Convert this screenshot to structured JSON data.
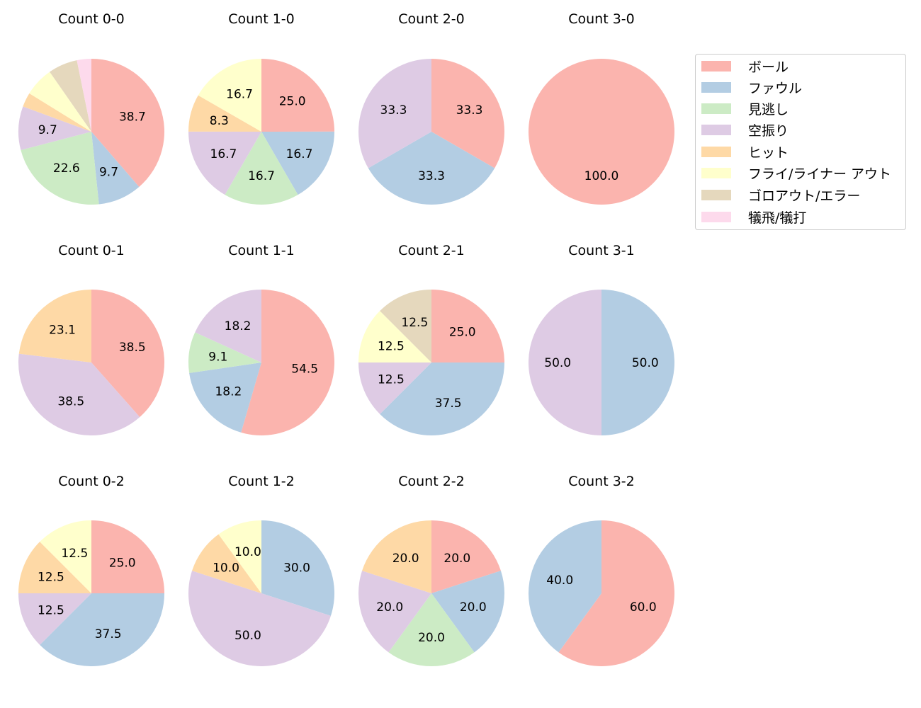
{
  "legend": {
    "items": [
      {
        "label": "ボール",
        "color": "#fbb4ae"
      },
      {
        "label": "ファウル",
        "color": "#b3cde3"
      },
      {
        "label": "見逃し",
        "color": "#ccebc5"
      },
      {
        "label": "空振り",
        "color": "#decbe4"
      },
      {
        "label": "ヒット",
        "color": "#fed9a6"
      },
      {
        "label": "フライ/ライナー アウト",
        "color": "#ffffcc"
      },
      {
        "label": "ゴロアウト/エラー",
        "color": "#e5d8bd"
      },
      {
        "label": "犠飛/犠打",
        "color": "#fddaec"
      }
    ]
  },
  "chart_data": {
    "type": "pie",
    "layout": {
      "rows": 3,
      "cols": 4,
      "startangle": 90,
      "direction": "clockwise",
      "legend_position": "upper right"
    },
    "categories": [
      "ボール",
      "ファウル",
      "見逃し",
      "空振り",
      "ヒット",
      "フライ/ライナー アウト",
      "ゴロアウト/エラー",
      "犠飛/犠打"
    ],
    "colors": [
      "#fbb4ae",
      "#b3cde3",
      "#ccebc5",
      "#decbe4",
      "#fed9a6",
      "#ffffcc",
      "#e5d8bd",
      "#fddaec"
    ],
    "charts": [
      {
        "title": "Count 0-0",
        "values": [
          38.7,
          9.7,
          22.6,
          9.7,
          3.2,
          6.5,
          6.5,
          3.2
        ],
        "labels": [
          "38.7",
          "9.7",
          "22.6",
          "9.7",
          "",
          "",
          "",
          ""
        ]
      },
      {
        "title": "Count 1-0",
        "values": [
          25.0,
          16.7,
          16.7,
          16.7,
          8.3,
          16.7,
          0,
          0
        ],
        "labels": [
          "25.0",
          "16.7",
          "16.7",
          "16.7",
          "8.3",
          "16.7",
          "",
          ""
        ]
      },
      {
        "title": "Count 2-0",
        "values": [
          33.3,
          33.3,
          0,
          33.3,
          0,
          0,
          0,
          0
        ],
        "labels": [
          "33.3",
          "33.3",
          "",
          "33.3",
          "",
          "",
          "",
          ""
        ]
      },
      {
        "title": "Count 3-0",
        "values": [
          100.0,
          0,
          0,
          0,
          0,
          0,
          0,
          0
        ],
        "labels": [
          "100.0",
          "",
          "",
          "",
          "",
          "",
          "",
          ""
        ]
      },
      {
        "title": "Count 0-1",
        "values": [
          38.5,
          0,
          0,
          38.5,
          23.1,
          0,
          0,
          0
        ],
        "labels": [
          "38.5",
          "",
          "",
          "38.5",
          "23.1",
          "",
          "",
          ""
        ]
      },
      {
        "title": "Count 1-1",
        "values": [
          54.5,
          18.2,
          9.1,
          18.2,
          0,
          0,
          0,
          0
        ],
        "labels": [
          "54.5",
          "18.2",
          "9.1",
          "18.2",
          "",
          "",
          "",
          ""
        ]
      },
      {
        "title": "Count 2-1",
        "values": [
          25.0,
          37.5,
          0,
          12.5,
          0,
          12.5,
          12.5,
          0
        ],
        "labels": [
          "25.0",
          "37.5",
          "",
          "12.5",
          "",
          "12.5",
          "12.5",
          ""
        ]
      },
      {
        "title": "Count 3-1",
        "values": [
          0,
          50.0,
          0,
          50.0,
          0,
          0,
          0,
          0
        ],
        "labels": [
          "",
          "50.0",
          "",
          "50.0",
          "",
          "",
          "",
          ""
        ]
      },
      {
        "title": "Count 0-2",
        "values": [
          25.0,
          37.5,
          0,
          12.5,
          12.5,
          12.5,
          0,
          0
        ],
        "labels": [
          "25.0",
          "37.5",
          "",
          "12.5",
          "12.5",
          "12.5",
          "",
          ""
        ]
      },
      {
        "title": "Count 1-2",
        "values": [
          0,
          30.0,
          0,
          50.0,
          10.0,
          10.0,
          0,
          0
        ],
        "labels": [
          "",
          "30.0",
          "",
          "50.0",
          "10.0",
          "10.0",
          "",
          ""
        ]
      },
      {
        "title": "Count 2-2",
        "values": [
          20.0,
          20.0,
          20.0,
          20.0,
          20.0,
          0,
          0,
          0
        ],
        "labels": [
          "20.0",
          "20.0",
          "20.0",
          "20.0",
          "20.0",
          "",
          "",
          ""
        ]
      },
      {
        "title": "Count 3-2",
        "values": [
          60.0,
          40.0,
          0,
          0,
          0,
          0,
          0,
          0
        ],
        "labels": [
          "60.0",
          "40.0",
          "",
          "",
          "",
          "",
          "",
          ""
        ]
      }
    ]
  }
}
